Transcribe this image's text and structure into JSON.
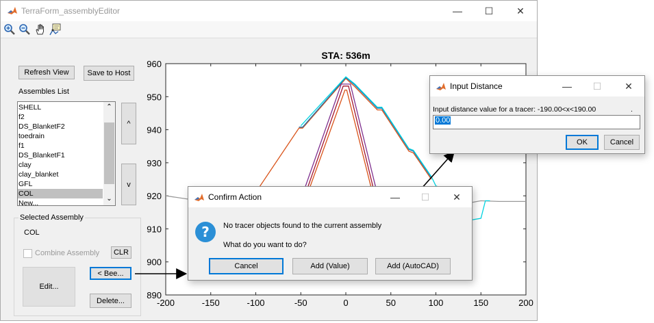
{
  "main_window": {
    "title": "TerraForm_assemblyEditor",
    "refresh_label": "Refresh View",
    "save_label": "Save to Host",
    "assemblies_label": "Assembles List",
    "assemblies": [
      "SHELL",
      "f2",
      "DS_BlanketF2",
      "toedrain",
      "f1",
      "DS_BlanketF1",
      "clay",
      "clay_blanket",
      "GFL",
      "COL",
      "New..."
    ],
    "selected_index": 9,
    "up_label": "^",
    "down_label": "v",
    "selected_group_title": "Selected Assembly",
    "selected_assembly": "COL",
    "combine_label": "Combine Assembly",
    "clr_label": "CLR",
    "edit_label": "Edit...",
    "bee_label": "< Bee...",
    "delete_label": "Delete..."
  },
  "chart_data": {
    "type": "line",
    "title": "STA: 536m",
    "xlim": [
      -200,
      200
    ],
    "ylim": [
      890,
      960
    ],
    "xticks": [
      -200,
      -150,
      -100,
      -50,
      0,
      50,
      100,
      150,
      200
    ],
    "yticks": [
      890,
      900,
      910,
      920,
      930,
      940,
      950,
      960
    ],
    "grid": false,
    "series": [
      {
        "color": "#999999",
        "points": [
          [
            -200,
            920
          ],
          [
            -175,
            919
          ],
          [
            -150,
            918.5
          ],
          [
            -125,
            919.5
          ],
          [
            -100,
            919
          ],
          [
            95,
            919
          ],
          [
            110,
            918.5
          ],
          [
            130,
            917.5
          ],
          [
            150,
            918.5
          ],
          [
            170,
            918.3
          ],
          [
            200,
            918.3
          ]
        ]
      },
      {
        "color": "#d95319",
        "points": [
          [
            -105,
            919
          ],
          [
            -52,
            940.5
          ],
          [
            -48,
            940.5
          ],
          [
            0,
            955.5
          ],
          [
            10,
            953
          ],
          [
            35,
            946
          ],
          [
            40,
            946
          ],
          [
            70,
            933.5
          ],
          [
            75,
            933
          ],
          [
            95,
            925
          ]
        ]
      },
      {
        "color": "#1f77b4",
        "points": [
          [
            -52,
            940.8
          ],
          [
            -48,
            940.8
          ],
          [
            0,
            955.8
          ],
          [
            10,
            953.5
          ],
          [
            35,
            946.5
          ],
          [
            40,
            946.5
          ],
          [
            70,
            934
          ],
          [
            75,
            933.5
          ],
          [
            95,
            925.5
          ]
        ]
      },
      {
        "color": "#00d3e0",
        "points": [
          [
            -50,
            941.2
          ],
          [
            0,
            956
          ],
          [
            10,
            953.8
          ],
          [
            35,
            946.8
          ],
          [
            40,
            946.8
          ],
          [
            70,
            934.3
          ],
          [
            75,
            933.8
          ],
          [
            95,
            925.8
          ],
          [
            100,
            923
          ],
          [
            105,
            922.5
          ],
          [
            110,
            920
          ],
          [
            110,
            913
          ],
          [
            120,
            913
          ],
          [
            135,
            912.5
          ],
          [
            150,
            913.2
          ],
          [
            155,
            918.5
          ],
          [
            160,
            918.5
          ]
        ]
      },
      {
        "color": "#7e2f8e",
        "points": [
          [
            -55,
            915
          ],
          [
            -5,
            953.8
          ],
          [
            5,
            953.8
          ],
          [
            40,
            915
          ]
        ]
      },
      {
        "color": "#a2142f",
        "points": [
          [
            -52,
            915
          ],
          [
            -3,
            953.2
          ],
          [
            3,
            953.2
          ],
          [
            37,
            915
          ]
        ]
      },
      {
        "color": "#d95319",
        "points": [
          [
            -50,
            915
          ],
          [
            -1,
            952
          ],
          [
            1,
            952
          ],
          [
            35,
            915
          ]
        ]
      }
    ]
  },
  "confirm_dialog": {
    "title": "Confirm Action",
    "message": "No tracer objects found to the current assembly",
    "question": "What do you want to do?",
    "buttons": [
      "Cancel",
      "Add (Value)",
      "Add (AutoCAD)"
    ]
  },
  "input_dialog": {
    "title": "Input Distance",
    "prompt": "Input distance value for a tracer: -190.00<x<190.00",
    "prompt_tail": ".",
    "value": "0.00",
    "ok_label": "OK",
    "cancel_label": "Cancel"
  },
  "colors": {
    "accent": "#0078d7",
    "help_icon": "#2b8fd6",
    "selected_row": "#c0c0c0"
  }
}
